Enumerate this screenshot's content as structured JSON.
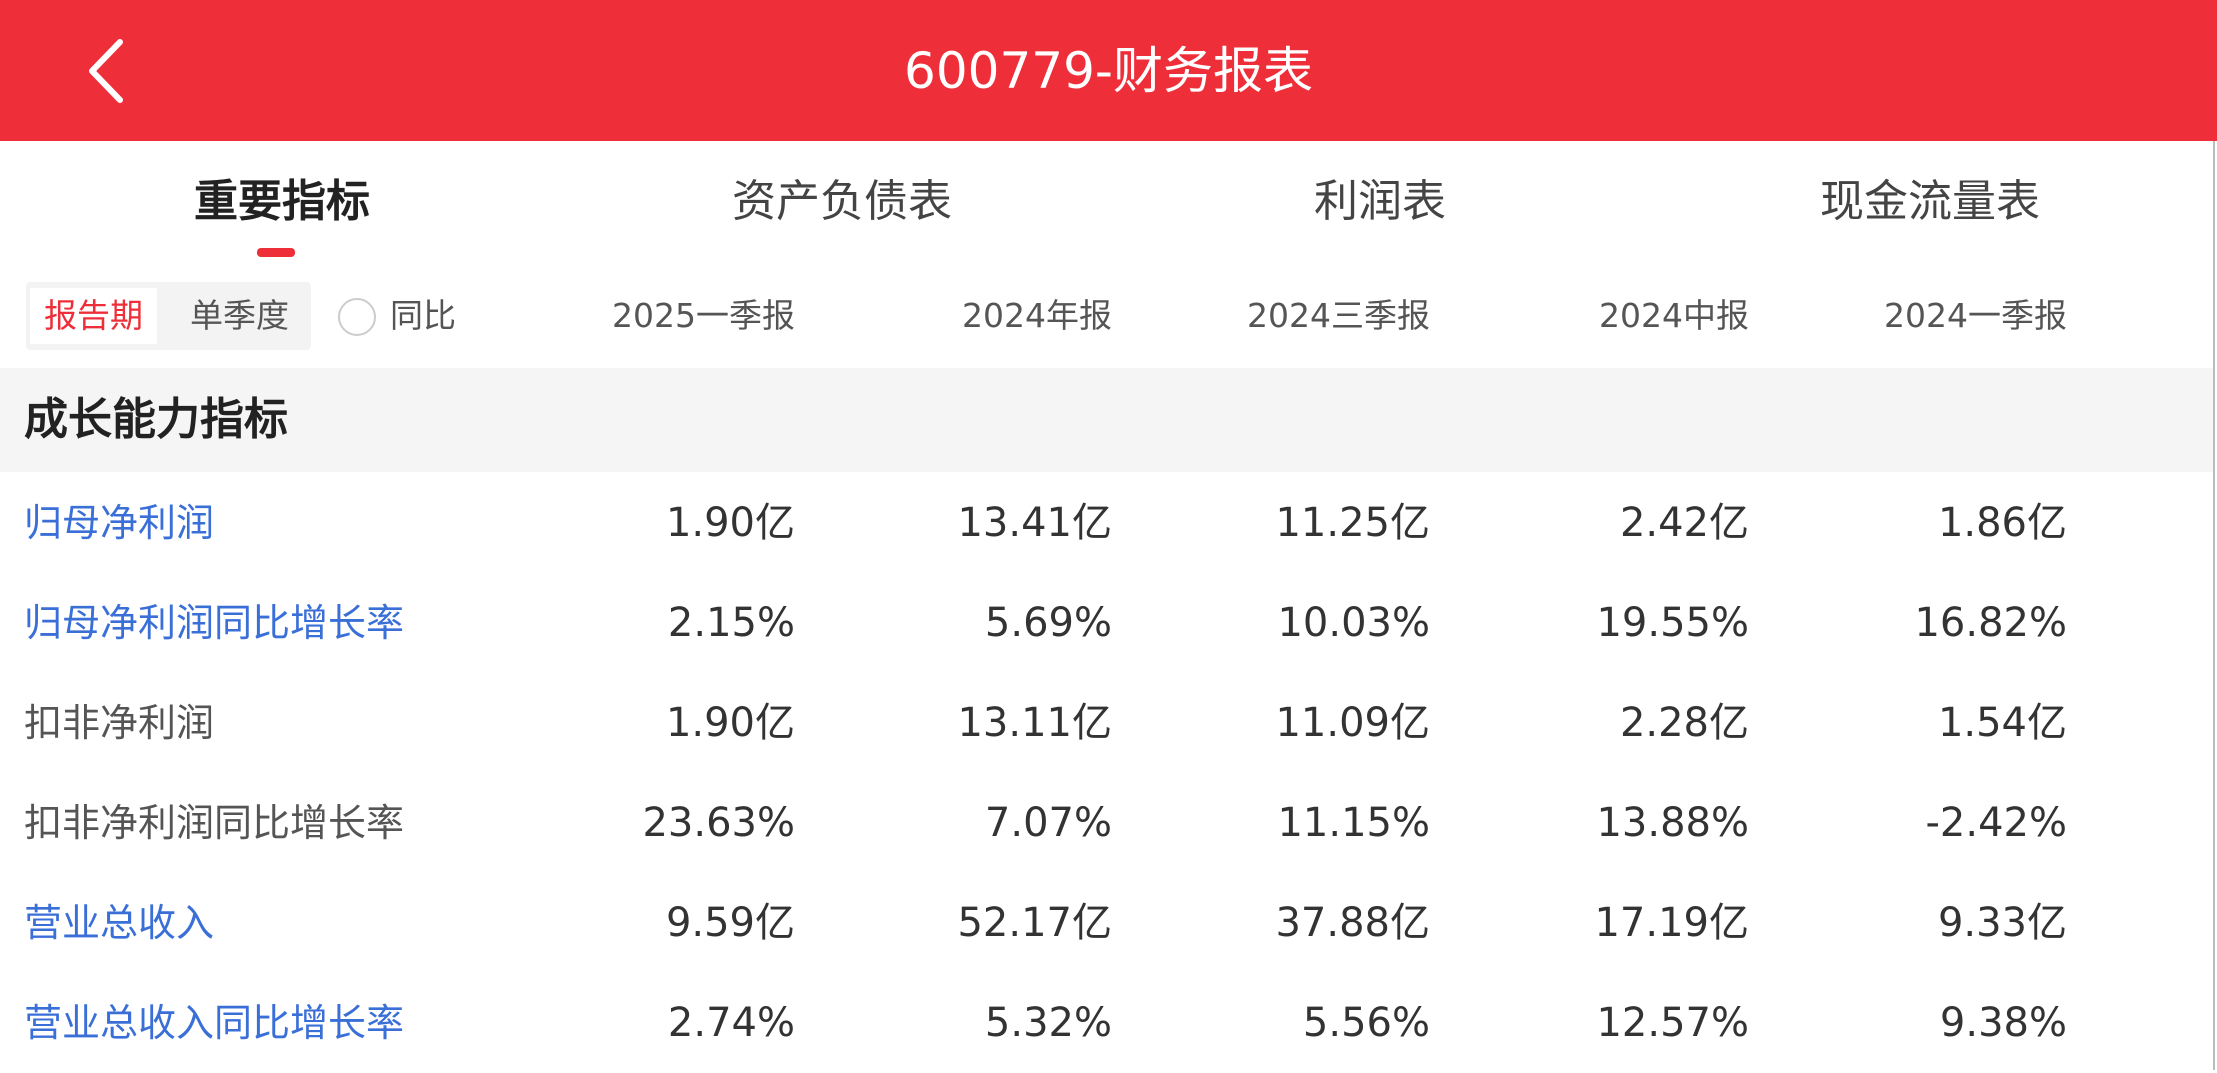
{
  "header": {
    "title": "600779-财务报表",
    "back_icon": "chevron-left-icon",
    "color": "#ee2f3a"
  },
  "tabs": [
    {
      "label": "重要指标",
      "active": true
    },
    {
      "label": "资产负债表"
    },
    {
      "label": "利润表"
    },
    {
      "label": "现金流量表"
    }
  ],
  "filters": {
    "segments": [
      "报告期",
      "单季度"
    ],
    "selected": "报告期",
    "yoy_label": "同比",
    "yoy_checked": false
  },
  "columns": [
    "2025一季报",
    "2024年报",
    "2024三季报",
    "2024中报",
    "2024一季报"
  ],
  "section": {
    "title": "成长能力指标"
  },
  "rows": [
    {
      "label": "归母净利润",
      "link": true,
      "values": [
        "1.90亿",
        "13.41亿",
        "11.25亿",
        "2.42亿",
        "1.86亿"
      ]
    },
    {
      "label": "归母净利润同比增长率",
      "link": true,
      "values": [
        "2.15%",
        "5.69%",
        "10.03%",
        "19.55%",
        "16.82%"
      ]
    },
    {
      "label": "扣非净利润",
      "link": false,
      "values": [
        "1.90亿",
        "13.11亿",
        "11.09亿",
        "2.28亿",
        "1.54亿"
      ]
    },
    {
      "label": "扣非净利润同比增长率",
      "link": false,
      "values": [
        "23.63%",
        "7.07%",
        "11.15%",
        "13.88%",
        "-2.42%"
      ]
    },
    {
      "label": "营业总收入",
      "link": true,
      "values": [
        "9.59亿",
        "52.17亿",
        "37.88亿",
        "17.19亿",
        "9.33亿"
      ]
    },
    {
      "label": "营业总收入同比增长率",
      "link": true,
      "values": [
        "2.74%",
        "5.32%",
        "5.56%",
        "12.57%",
        "9.38%"
      ]
    }
  ]
}
